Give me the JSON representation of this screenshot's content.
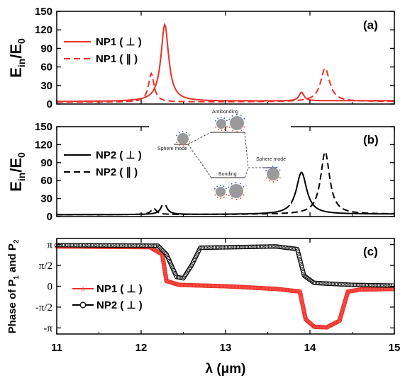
{
  "figure": {
    "xlabel": "λ (μm)",
    "x_ticks": [
      "11",
      "12",
      "13",
      "14",
      "15"
    ]
  },
  "chart_data": [
    {
      "type": "line",
      "panel": "(a)",
      "ylabel": "Ein/E0",
      "ylim": [
        0,
        150
      ],
      "xlim": [
        11,
        15
      ],
      "y_ticks": [
        "0",
        "30",
        "60",
        "90",
        "120",
        "150"
      ],
      "legend_position": "top-left",
      "series": [
        {
          "name": "NP1 ( ⊥ )",
          "color": "#e8312a",
          "style": "solid",
          "peaks": [
            {
              "x": 12.28,
              "height": 124,
              "width": 0.055
            },
            {
              "x": 13.9,
              "height": 14,
              "width": 0.035
            }
          ],
          "baseline": 4
        },
        {
          "name": "NP1 ( ∥ )",
          "color": "#e8312a",
          "style": "dashed",
          "peaks": [
            {
              "x": 12.12,
              "height": 46,
              "width": 0.04
            },
            {
              "x": 14.18,
              "height": 54,
              "width": 0.065
            }
          ],
          "baseline": 3
        }
      ]
    },
    {
      "type": "line",
      "panel": "(b)",
      "ylabel": "Ein/E0",
      "ylim": [
        0,
        150
      ],
      "xlim": [
        11,
        15
      ],
      "y_ticks": [
        "0",
        "30",
        "60",
        "90",
        "120",
        "150"
      ],
      "legend_position": "top-left",
      "series": [
        {
          "name": "NP2 ( ⊥ )",
          "color": "#000000",
          "style": "solid",
          "peaks": [
            {
              "x": 12.27,
              "height": 20,
              "width": 0.04
            },
            {
              "x": 13.9,
              "height": 70,
              "width": 0.075
            }
          ],
          "baseline": 3
        },
        {
          "name": "NP2 ( ∥ )",
          "color": "#000000",
          "style": "dashed",
          "peaks": [
            {
              "x": 12.15,
              "height": 10,
              "width": 0.04
            },
            {
              "x": 14.18,
              "height": 104,
              "width": 0.065
            }
          ],
          "baseline": 3
        }
      ]
    },
    {
      "type": "line",
      "panel": "(c)",
      "ylabel": "Phase of P1 and P2",
      "ylim": [
        -3.6,
        3.6
      ],
      "xlim": [
        11,
        15
      ],
      "y_ticks": [
        "π",
        "π/2",
        "0",
        "-π/2",
        "-π"
      ],
      "legend_position": "center-left",
      "series": [
        {
          "name": "NP1 ( ⊥ )",
          "color": "#e8312a",
          "marker": "star",
          "points": [
            [
              11.0,
              3.0
            ],
            [
              12.1,
              2.95
            ],
            [
              12.25,
              2.4
            ],
            [
              12.3,
              0.4
            ],
            [
              12.45,
              0.1
            ],
            [
              13.0,
              0.0
            ],
            [
              13.6,
              -0.2
            ],
            [
              13.88,
              -0.4
            ],
            [
              13.95,
              -2.5
            ],
            [
              14.05,
              -3.05
            ],
            [
              14.2,
              -3.1
            ],
            [
              14.35,
              -2.6
            ],
            [
              14.45,
              -0.4
            ],
            [
              14.6,
              -0.25
            ],
            [
              15.0,
              -0.2
            ]
          ]
        },
        {
          "name": "NP2 ( ⊥ )",
          "color": "#000000",
          "marker": "circle",
          "points": [
            [
              11.0,
              3.1
            ],
            [
              12.2,
              3.05
            ],
            [
              12.3,
              2.4
            ],
            [
              12.42,
              0.7
            ],
            [
              12.5,
              0.6
            ],
            [
              12.6,
              1.6
            ],
            [
              12.7,
              2.9
            ],
            [
              13.6,
              3.0
            ],
            [
              13.85,
              2.8
            ],
            [
              13.93,
              0.8
            ],
            [
              14.05,
              0.25
            ],
            [
              14.5,
              0.1
            ],
            [
              15.0,
              0.05
            ]
          ]
        }
      ]
    }
  ],
  "inset": {
    "labels": [
      "Antibonding",
      "Sphere mode",
      "Bonding",
      "Sphere mode"
    ]
  }
}
